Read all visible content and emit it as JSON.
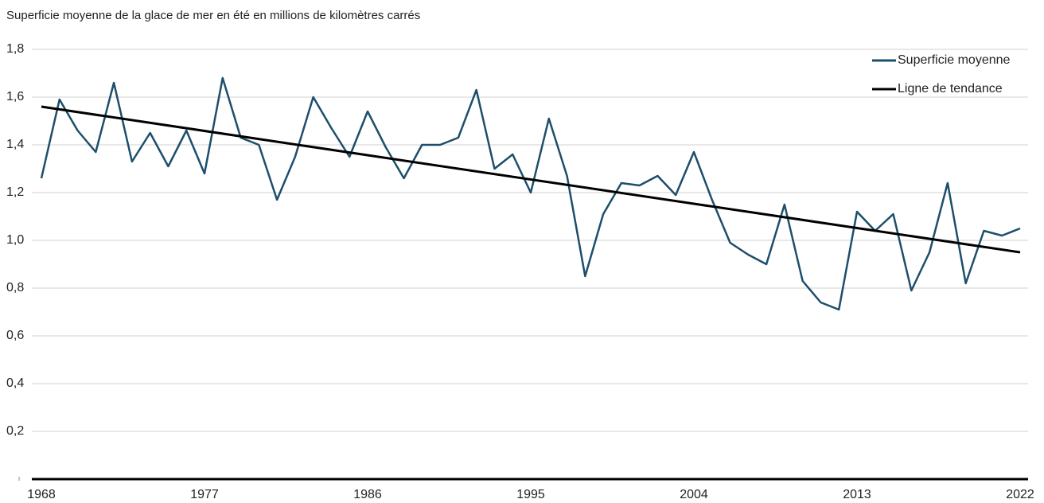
{
  "chart_data": {
    "type": "line",
    "title": "Superficie moyenne de la glace de mer en été en millions de kilomètres carrés",
    "x": [
      1968,
      1969,
      1970,
      1971,
      1972,
      1973,
      1974,
      1975,
      1976,
      1977,
      1978,
      1979,
      1980,
      1981,
      1982,
      1983,
      1984,
      1985,
      1986,
      1987,
      1988,
      1989,
      1990,
      1991,
      1992,
      1993,
      1994,
      1995,
      1996,
      1997,
      1998,
      1999,
      2000,
      2001,
      2002,
      2003,
      2004,
      2005,
      2006,
      2007,
      2008,
      2009,
      2010,
      2011,
      2012,
      2013,
      2014,
      2015,
      2016,
      2017,
      2018,
      2019,
      2020,
      2021,
      2022
    ],
    "series": [
      {
        "name": "Superficie moyenne",
        "color": "#1d4e6b",
        "values": [
          1.26,
          1.59,
          1.46,
          1.37,
          1.66,
          1.33,
          1.45,
          1.31,
          1.46,
          1.28,
          1.68,
          1.43,
          1.4,
          1.17,
          1.35,
          1.6,
          1.47,
          1.35,
          1.54,
          1.39,
          1.26,
          1.4,
          1.4,
          1.43,
          1.63,
          1.3,
          1.36,
          1.2,
          1.51,
          1.27,
          0.85,
          1.11,
          1.24,
          1.23,
          1.27,
          1.19,
          1.37,
          1.17,
          0.99,
          0.94,
          0.9,
          1.15,
          0.83,
          0.74,
          0.71,
          1.12,
          1.04,
          1.11,
          0.79,
          0.95,
          1.24,
          0.82,
          1.04,
          1.02,
          1.05
        ]
      },
      {
        "name": "Ligne de tendance",
        "color": "#000000",
        "x": [
          1968,
          2022
        ],
        "values": [
          1.56,
          0.95
        ]
      }
    ],
    "xlim": [
      1968,
      2022
    ],
    "xticks": [
      1968,
      1977,
      1986,
      1995,
      2004,
      2013,
      2022
    ],
    "ylim": [
      0,
      1.8
    ],
    "yticks": [
      {
        "value": 0.2,
        "label": "0,2"
      },
      {
        "value": 0.4,
        "label": "0,4"
      },
      {
        "value": 0.6,
        "label": "0,6"
      },
      {
        "value": 0.8,
        "label": "0,8"
      },
      {
        "value": 1.0,
        "label": "1,0"
      },
      {
        "value": 1.2,
        "label": "1,2"
      },
      {
        "value": 1.4,
        "label": "1,4"
      },
      {
        "value": 1.6,
        "label": "1,6"
      },
      {
        "value": 1.8,
        "label": "1,8"
      }
    ],
    "grid": true,
    "legend": "top-right"
  }
}
